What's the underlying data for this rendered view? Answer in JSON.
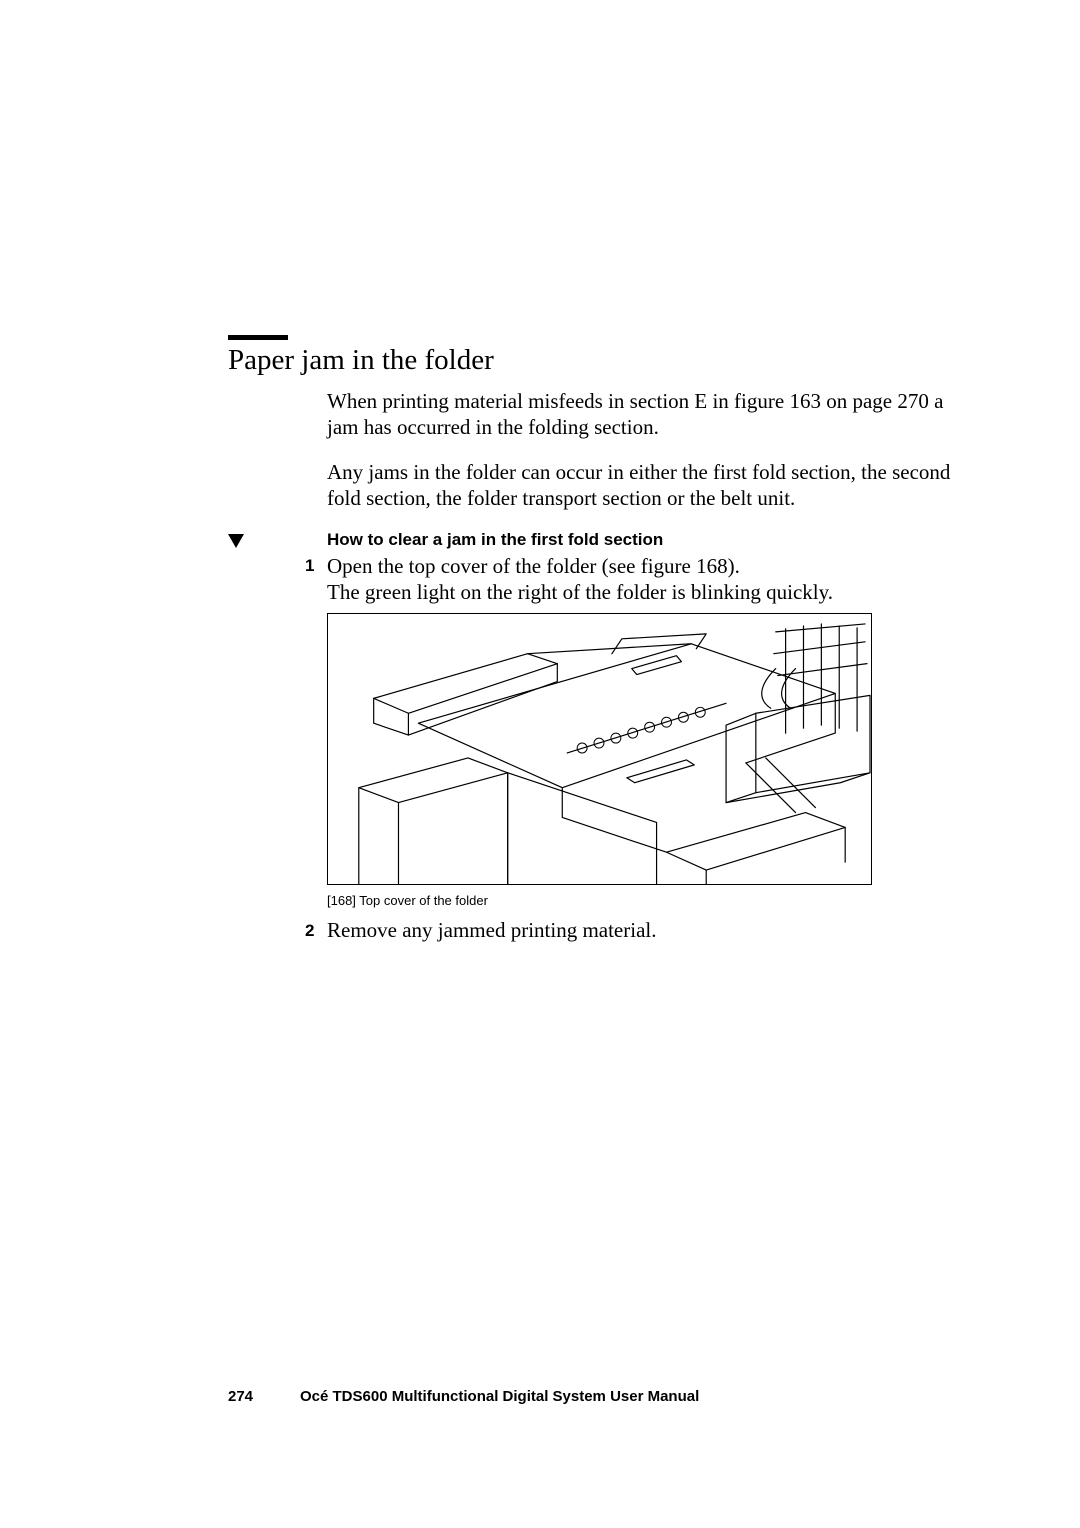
{
  "heading": "Paper jam in the folder",
  "paragraphs": {
    "p1": "When printing material misfeeds in section E in figure 163 on page 270 a jam has occurred in the folding section.",
    "p2": "Any jams in the folder can occur in either the first fold section, the second fold section, the folder transport section or the belt unit."
  },
  "procedure": {
    "title": "How to clear a jam in the first fold section",
    "steps": [
      {
        "num": "1",
        "text": "Open the top cover of the folder (see figure 168).\nThe green light on the right of the folder is blinking quickly."
      },
      {
        "num": "2",
        "text": "Remove any jammed printing material."
      }
    ]
  },
  "figure": {
    "caption": "[168] Top cover of the folder",
    "stroke": "#000000",
    "bg": "#ffffff"
  },
  "footer": {
    "page_number": "274",
    "manual_title": "Océ TDS600 Multifunctional Digital System User Manual"
  },
  "style": {
    "body_font_pt": 21,
    "heading_font_pt": 29,
    "sans_font_pt": 17,
    "caption_font_pt": 13,
    "footer_font_pt": 15,
    "text_color": "#000000",
    "background_color": "#ffffff"
  }
}
